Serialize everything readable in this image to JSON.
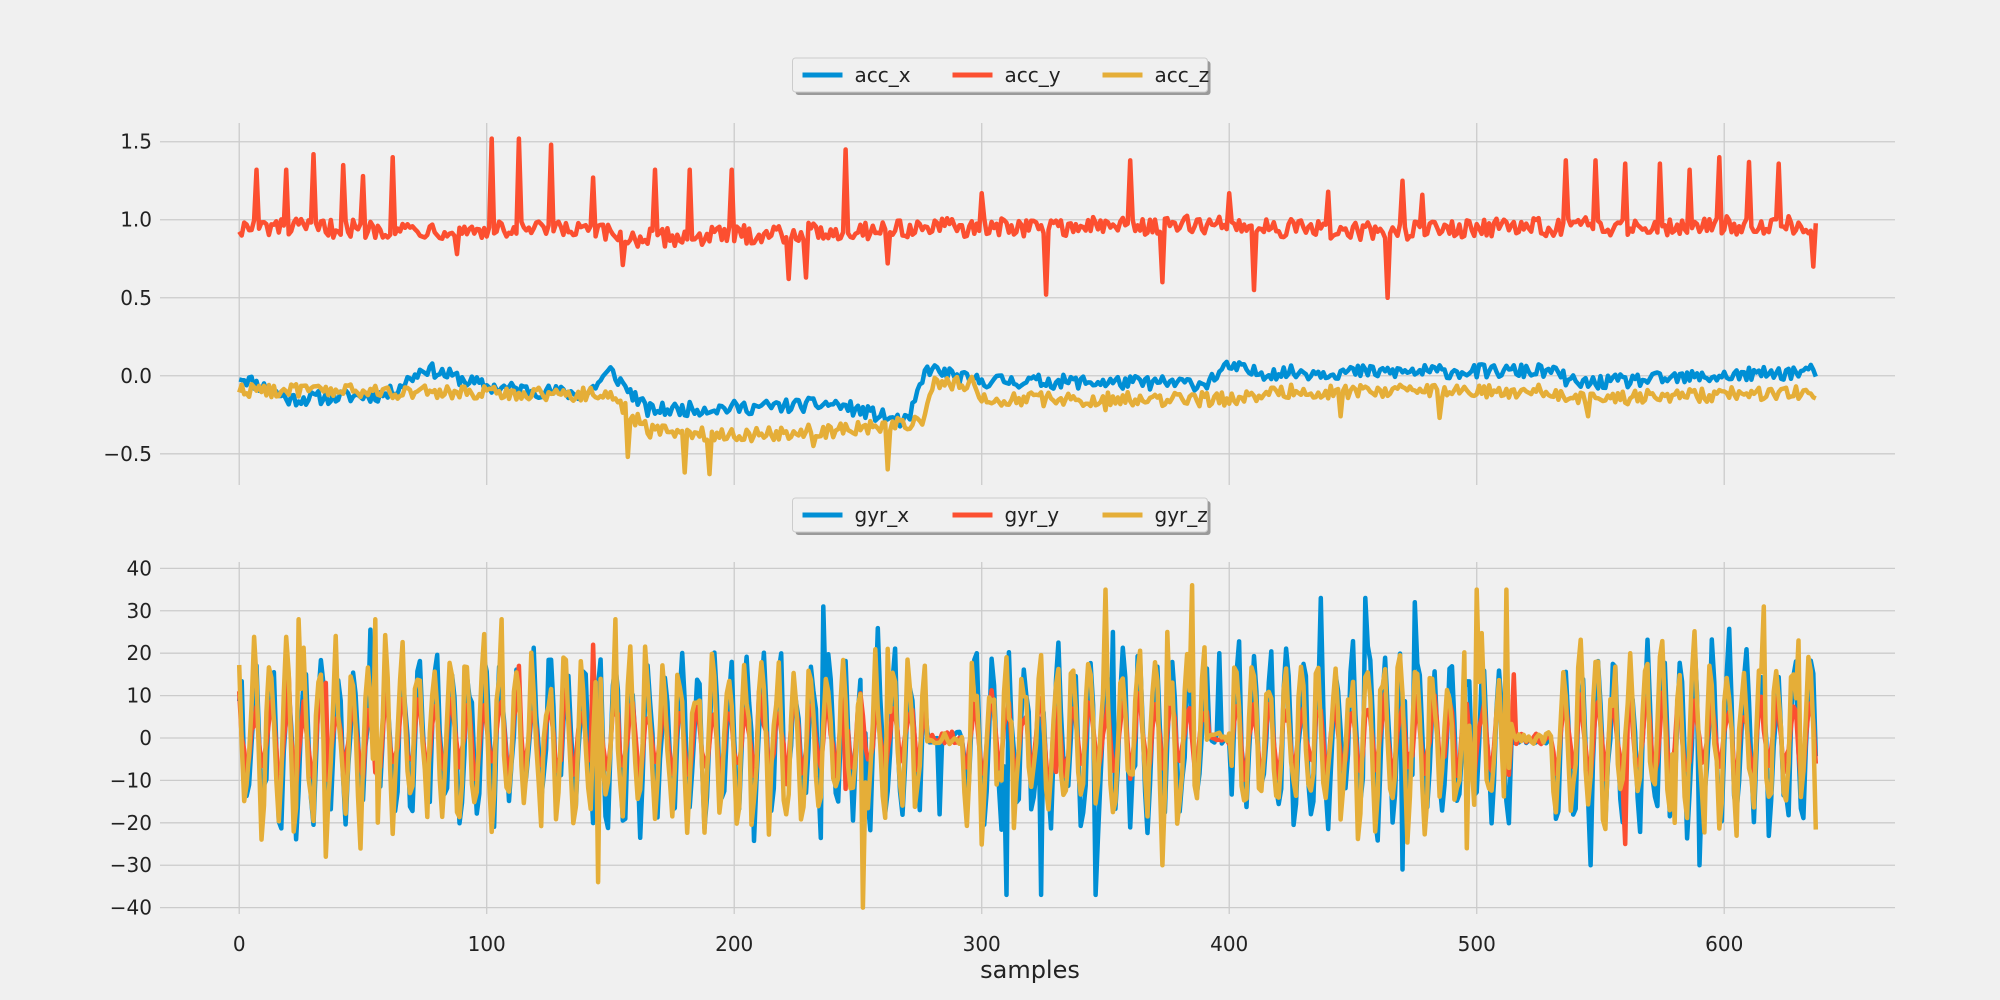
{
  "colors": {
    "background": "#f0f0f0",
    "grid": "#cbcbcb",
    "series": [
      "#008fd5",
      "#fc4f30",
      "#e5ae38"
    ]
  },
  "chart_data": [
    {
      "type": "line",
      "title": "",
      "xlabel": "",
      "ylabel": "",
      "xlim": [
        -32,
        669
      ],
      "ylim": [
        -0.7,
        1.62
      ],
      "xticks": [
        0,
        100,
        200,
        300,
        400,
        500,
        600
      ],
      "yticks": [
        -0.5,
        0.0,
        0.5,
        1.0,
        1.5
      ],
      "ytick_labels": [
        "−0.5",
        "0.0",
        "0.5",
        "1.0",
        "1.5"
      ],
      "grid": true,
      "legend_position": "top-center",
      "n_samples": 638,
      "series": [
        {
          "name": "acc_x",
          "color": "#008fd5",
          "base": [
            [
              0,
              0.0
            ],
            [
              20,
              -0.15
            ],
            [
              60,
              -0.12
            ],
            [
              75,
              0.05
            ],
            [
              100,
              -0.07
            ],
            [
              140,
              -0.12
            ],
            [
              150,
              0.03
            ],
            [
              165,
              -0.22
            ],
            [
              210,
              -0.2
            ],
            [
              240,
              -0.18
            ],
            [
              270,
              -0.3
            ],
            [
              278,
              0.05
            ],
            [
              295,
              -0.03
            ],
            [
              390,
              -0.05
            ],
            [
              400,
              0.06
            ],
            [
              410,
              0.02
            ],
            [
              515,
              0.03
            ],
            [
              530,
              0.03
            ],
            [
              540,
              -0.05
            ],
            [
              638,
              0.03
            ]
          ],
          "amp": 0.045,
          "spikes": []
        },
        {
          "name": "acc_y",
          "color": "#fc4f30",
          "base": [
            [
              0,
              0.95
            ],
            [
              140,
              0.93
            ],
            [
              160,
              0.88
            ],
            [
              280,
              0.95
            ],
            [
              300,
              0.95
            ],
            [
              400,
              0.97
            ],
            [
              450,
              0.92
            ],
            [
              500,
              0.95
            ],
            [
              638,
              0.97
            ]
          ],
          "amp": 0.06,
          "spikes": [
            [
              7,
              1.32
            ],
            [
              19,
              1.32
            ],
            [
              30,
              1.42
            ],
            [
              42,
              1.35
            ],
            [
              50,
              1.28
            ],
            [
              62,
              1.4
            ],
            [
              88,
              0.78
            ],
            [
              102,
              1.52
            ],
            [
              113,
              1.52
            ],
            [
              126,
              1.48
            ],
            [
              143,
              1.27
            ],
            [
              155,
              0.71
            ],
            [
              168,
              1.32
            ],
            [
              182,
              1.32
            ],
            [
              199,
              1.32
            ],
            [
              222,
              0.62
            ],
            [
              229,
              0.63
            ],
            [
              245,
              1.45
            ],
            [
              262,
              0.72
            ],
            [
              300,
              1.17
            ],
            [
              326,
              0.52
            ],
            [
              360,
              1.38
            ],
            [
              373,
              0.6
            ],
            [
              400,
              1.17
            ],
            [
              410,
              0.55
            ],
            [
              440,
              1.18
            ],
            [
              464,
              0.5
            ],
            [
              470,
              1.25
            ],
            [
              478,
              1.16
            ],
            [
              536,
              1.38
            ],
            [
              548,
              1.38
            ],
            [
              560,
              1.36
            ],
            [
              574,
              1.36
            ],
            [
              586,
              1.32
            ],
            [
              598,
              1.4
            ],
            [
              610,
              1.37
            ],
            [
              622,
              1.36
            ],
            [
              636,
              0.7
            ]
          ]
        },
        {
          "name": "acc_z",
          "color": "#e5ae38",
          "base": [
            [
              0,
              -0.09
            ],
            [
              150,
              -0.12
            ],
            [
              165,
              -0.35
            ],
            [
              200,
              -0.38
            ],
            [
              240,
              -0.35
            ],
            [
              276,
              -0.3
            ],
            [
              280,
              -0.05
            ],
            [
              296,
              -0.05
            ],
            [
              300,
              -0.15
            ],
            [
              400,
              -0.15
            ],
            [
              420,
              -0.1
            ],
            [
              530,
              -0.1
            ],
            [
              540,
              -0.15
            ],
            [
              638,
              -0.1
            ]
          ],
          "amp": 0.045,
          "spikes": [
            [
              157,
              -0.52
            ],
            [
              180,
              -0.62
            ],
            [
              190,
              -0.63
            ],
            [
              232,
              -0.45
            ],
            [
              262,
              -0.6
            ],
            [
              350,
              -0.22
            ],
            [
              445,
              -0.26
            ],
            [
              485,
              -0.27
            ],
            [
              545,
              -0.26
            ]
          ]
        }
      ]
    },
    {
      "type": "line",
      "title": "",
      "xlabel": "samples",
      "ylabel": "",
      "xlim": [
        -32,
        669
      ],
      "ylim": [
        -41.5,
        41.5
      ],
      "xticks": [
        0,
        100,
        200,
        300,
        400,
        500,
        600
      ],
      "xtick_labels": [
        "0",
        "100",
        "200",
        "300",
        "400",
        "500",
        "600"
      ],
      "yticks": [
        -40,
        -30,
        -20,
        -10,
        0,
        10,
        20,
        30,
        40
      ],
      "ytick_labels": [
        "−40",
        "−30",
        "−20",
        "−10",
        "0",
        "10",
        "20",
        "30",
        "40"
      ],
      "grid": true,
      "legend_position": "top-center",
      "n_samples": 638,
      "series": [
        {
          "name": "gyr_x",
          "color": "#008fd5",
          "quiet": [
            [
              278,
              292
            ],
            [
              392,
              400
            ],
            [
              515,
              530
            ]
          ],
          "amp": 22,
          "spikes": [
            [
              236,
              31
            ],
            [
              252,
              -30
            ],
            [
              283,
              -18
            ],
            [
              310,
              -37
            ],
            [
              324,
              -37
            ],
            [
              346,
              -37
            ],
            [
              353,
              25
            ],
            [
              396,
              20
            ],
            [
              437,
              33
            ],
            [
              455,
              33
            ],
            [
              470,
              -31
            ],
            [
              475,
              32
            ],
            [
              546,
              -30
            ],
            [
              590,
              -30
            ]
          ]
        },
        {
          "name": "gyr_y",
          "color": "#fc4f30",
          "quiet": [
            [
              278,
              292
            ],
            [
              392,
              400
            ],
            [
              515,
              530
            ]
          ],
          "amp": 10,
          "spikes": [
            [
              20,
              15
            ],
            [
              35,
              13
            ],
            [
              113,
              17
            ],
            [
              143,
              22
            ],
            [
              210,
              11
            ],
            [
              245,
              -12
            ],
            [
              330,
              -8
            ],
            [
              515,
              15
            ],
            [
              560,
              -25
            ]
          ]
        },
        {
          "name": "gyr_z",
          "color": "#e5ae38",
          "quiet": [
            [
              278,
              292
            ],
            [
              392,
              400
            ],
            [
              515,
              530
            ]
          ],
          "amp": 22,
          "spikes": [
            [
              24,
              28
            ],
            [
              35,
              -28
            ],
            [
              55,
              28
            ],
            [
              106,
              28
            ],
            [
              145,
              -34
            ],
            [
              152,
              28
            ],
            [
              252,
              -40
            ],
            [
              262,
              21
            ],
            [
              350,
              35
            ],
            [
              373,
              -30
            ],
            [
              375,
              25
            ],
            [
              385,
              36
            ],
            [
              496,
              -26
            ],
            [
              500,
              35
            ],
            [
              512,
              35
            ],
            [
              580,
              -20
            ],
            [
              616,
              31
            ],
            [
              630,
              23
            ]
          ]
        }
      ]
    }
  ],
  "legends": [
    {
      "items": [
        "acc_x",
        "acc_y",
        "acc_z"
      ]
    },
    {
      "items": [
        "gyr_x",
        "gyr_y",
        "gyr_z"
      ]
    }
  ]
}
